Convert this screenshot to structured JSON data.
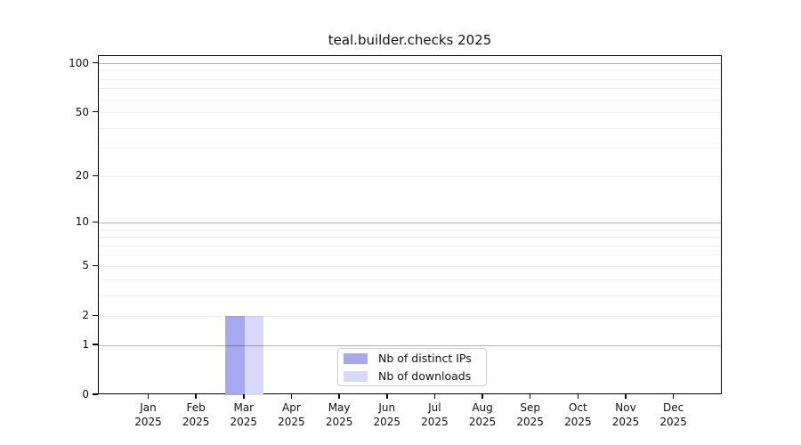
{
  "chart_data": {
    "type": "bar",
    "title": "teal.builder.checks 2025",
    "categories": [
      "Jan",
      "Feb",
      "Mar",
      "Apr",
      "May",
      "Jun",
      "Jul",
      "Aug",
      "Sep",
      "Oct",
      "Nov",
      "Dec"
    ],
    "category_year": "2025",
    "series": [
      {
        "name": "Nb of distinct IPs",
        "color": "#a8a8f0",
        "values": [
          0,
          0,
          2,
          0,
          0,
          0,
          0,
          0,
          0,
          0,
          0,
          0
        ]
      },
      {
        "name": "Nb of downloads",
        "color": "#d8d8f8",
        "values": [
          0,
          0,
          2,
          0,
          0,
          0,
          0,
          0,
          0,
          0,
          0,
          0
        ]
      }
    ],
    "y_ticks": [
      0,
      1,
      2,
      5,
      10,
      20,
      50,
      100
    ],
    "y_minor_ticks": [
      3,
      4,
      6,
      7,
      8,
      9,
      30,
      40,
      60,
      70,
      80,
      90
    ],
    "scale": "log1p",
    "ylim": [
      0,
      112
    ],
    "grid": true,
    "legend_position": "lower-center-inside",
    "colors": {
      "decade_gridline": "rgba(0,0,0,0.30)",
      "minor_gridline": "rgba(0,0,0,0.06)",
      "axis": "#000000",
      "text": "#111111",
      "legend_border": "#cccccc",
      "background": "#ffffff"
    }
  }
}
